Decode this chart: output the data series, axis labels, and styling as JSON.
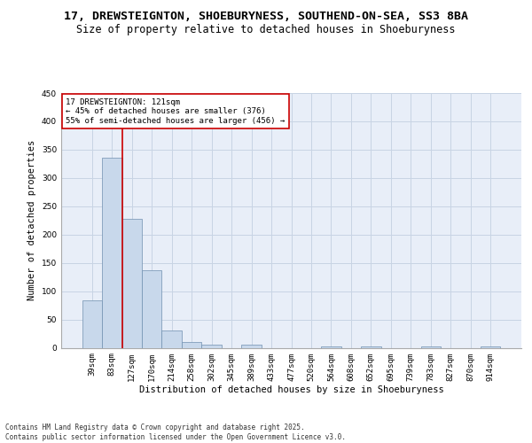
{
  "title1": "17, DREWSTEIGNTON, SHOEBURYNESS, SOUTHEND-ON-SEA, SS3 8BA",
  "title2": "Size of property relative to detached houses in Shoeburyness",
  "xlabel": "Distribution of detached houses by size in Shoeburyness",
  "ylabel": "Number of detached properties",
  "categories": [
    "39sqm",
    "83sqm",
    "127sqm",
    "170sqm",
    "214sqm",
    "258sqm",
    "302sqm",
    "345sqm",
    "389sqm",
    "433sqm",
    "477sqm",
    "520sqm",
    "564sqm",
    "608sqm",
    "652sqm",
    "695sqm",
    "739sqm",
    "783sqm",
    "827sqm",
    "870sqm",
    "914sqm"
  ],
  "values": [
    83,
    336,
    228,
    137,
    30,
    10,
    5,
    0,
    5,
    0,
    0,
    0,
    2,
    0,
    2,
    0,
    0,
    2,
    0,
    0,
    2
  ],
  "bar_color": "#c8d8eb",
  "bar_edge_color": "#7090b0",
  "grid_color": "#c8d4e4",
  "background_color": "#e8eef8",
  "annotation_box_text": "17 DREWSTEIGNTON: 121sqm\n← 45% of detached houses are smaller (376)\n55% of semi-detached houses are larger (456) →",
  "annotation_box_color": "#ffffff",
  "annotation_line_color": "#cc0000",
  "ylim": [
    0,
    450
  ],
  "yticks": [
    0,
    50,
    100,
    150,
    200,
    250,
    300,
    350,
    400,
    450
  ],
  "footer": "Contains HM Land Registry data © Crown copyright and database right 2025.\nContains public sector information licensed under the Open Government Licence v3.0.",
  "title_fontsize": 9.5,
  "subtitle_fontsize": 8.5,
  "axis_label_fontsize": 7.5,
  "tick_fontsize": 6.5,
  "annotation_fontsize": 6.5,
  "footer_fontsize": 5.5
}
